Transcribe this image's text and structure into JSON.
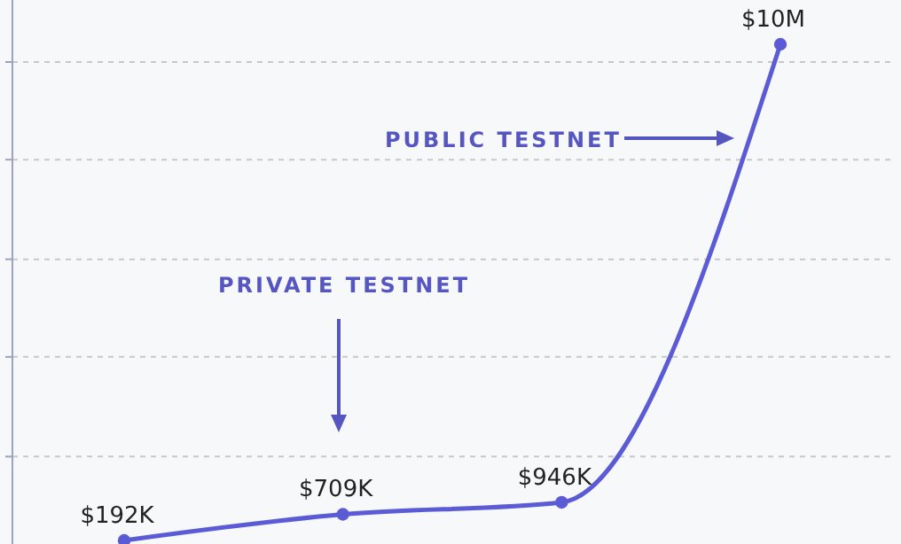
{
  "chart_data": {
    "type": "line",
    "categories": [
      null,
      null,
      null,
      null
    ],
    "series": [
      {
        "color": "#5b5bd6",
        "values": [
          192000,
          709000,
          946000,
          10000000
        ],
        "value_labels": [
          "$192K",
          "$709K",
          "$946K",
          "$10M"
        ]
      }
    ],
    "yticks": [
      {
        "value": 1850000,
        "label": null
      },
      {
        "value": 3820000,
        "label": null
      },
      {
        "value": 5750000,
        "label": null
      },
      {
        "value": 7720000,
        "label": null
      },
      {
        "value": 9650000,
        "label": null
      }
    ],
    "grid": "y",
    "marker": "circle",
    "line_style": "solid",
    "annotations": [
      "PUBLIC TESTNET",
      "PRIVATE TESTNET"
    ]
  }
}
